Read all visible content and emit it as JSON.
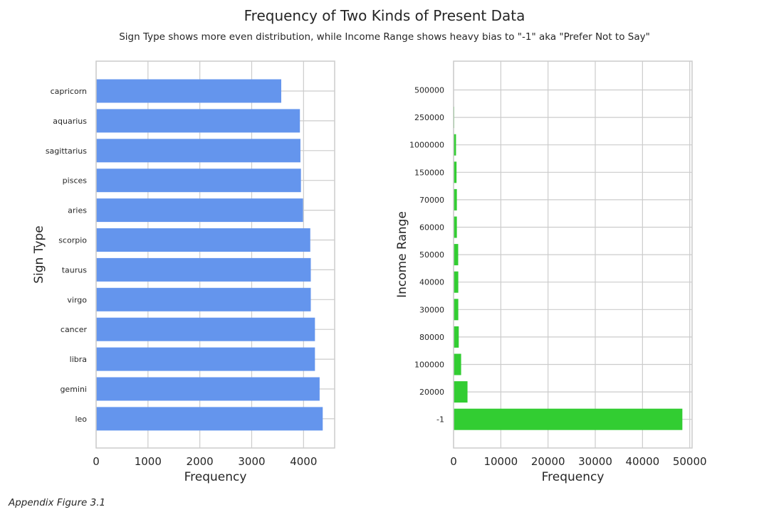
{
  "figure": {
    "title": "Frequency of Two Kinds of Present Data",
    "subtitle": "Sign Type shows more even distribution, while Income Range shows heavy bias to \"-1\" aka \"Prefer Not to Say\"",
    "caption": "Appendix Figure 3.1"
  },
  "chart_data": [
    {
      "type": "bar",
      "orientation": "horizontal",
      "ylabel": "Sign Type",
      "xlabel": "Frequency",
      "color": "#6495ed",
      "xlim": [
        0,
        4600
      ],
      "xticks": [
        0,
        1000,
        2000,
        3000,
        4000
      ],
      "grid": true,
      "categories": [
        "capricorn",
        "aquarius",
        "sagittarius",
        "pisces",
        "aries",
        "scorpio",
        "taurus",
        "virgo",
        "cancer",
        "libra",
        "gemini",
        "leo"
      ],
      "values": [
        3570,
        3930,
        3940,
        3950,
        3990,
        4130,
        4140,
        4140,
        4220,
        4220,
        4310,
        4370
      ]
    },
    {
      "type": "bar",
      "orientation": "horizontal",
      "ylabel": "Income Range",
      "xlabel": "Frequency",
      "color": "#32cd32",
      "xlim": [
        0,
        50500
      ],
      "xticks": [
        0,
        10000,
        20000,
        30000,
        40000,
        50000
      ],
      "grid": true,
      "categories": [
        "500000",
        "250000",
        "1000000",
        "150000",
        "70000",
        "60000",
        "50000",
        "40000",
        "30000",
        "80000",
        "100000",
        "20000",
        "-1"
      ],
      "values": [
        48,
        150,
        520,
        630,
        700,
        700,
        980,
        1000,
        1000,
        1100,
        1600,
        2950,
        48440
      ]
    }
  ]
}
